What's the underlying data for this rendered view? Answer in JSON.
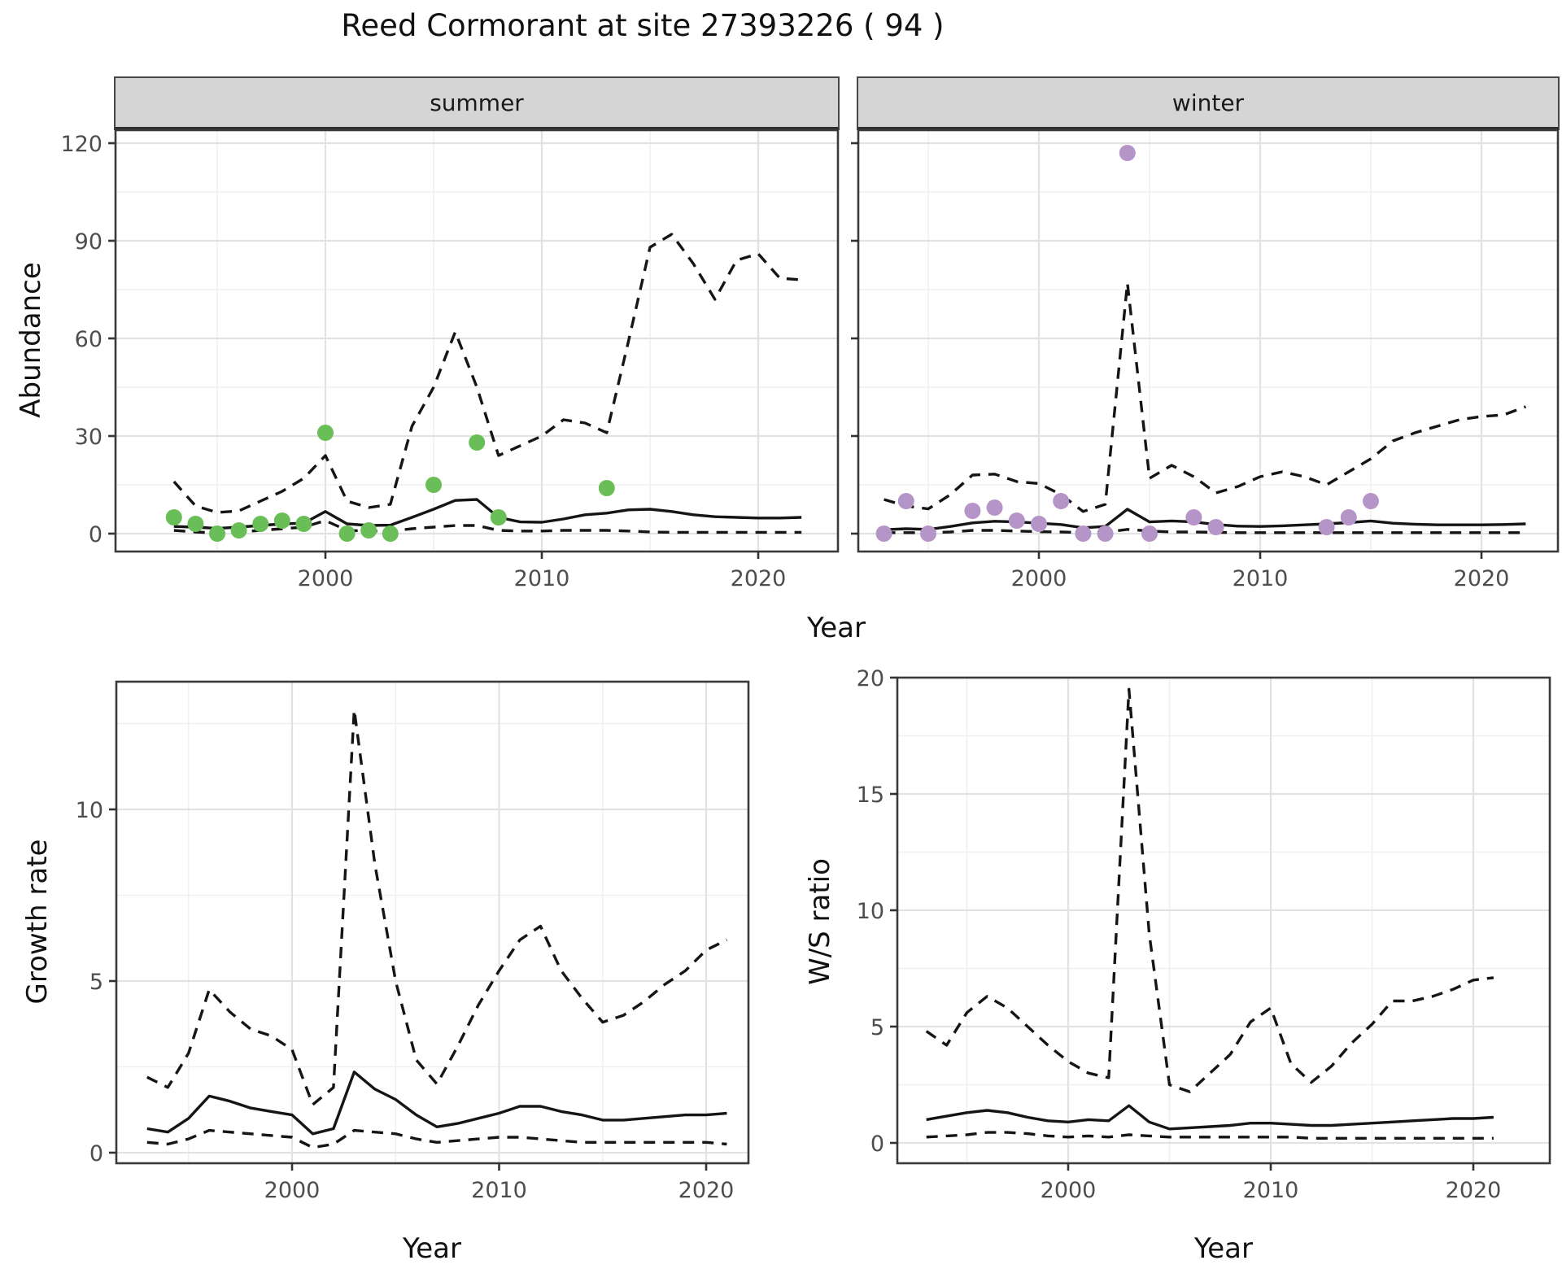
{
  "title": "Reed Cormorant at site 27393226 ( 94 )",
  "top_figure": {
    "ylabel": "Abundance",
    "xlabel": "Year",
    "facets": [
      "summer",
      "winter"
    ]
  },
  "colors": {
    "summer_points": "#69be57",
    "winter_points": "#b594c7",
    "line": "#151515",
    "major_grid": "#e2e2e2",
    "minor_grid": "#f0f0f0",
    "panel_border": "#3a3a3a",
    "strip_bg": "#d5d5d5",
    "tick_text": "#4d4d4d"
  },
  "chart_data": [
    {
      "id": "abundance_summer",
      "type": "line",
      "facet_label": "summer",
      "xlabel": "Year",
      "ylabel": "Abundance",
      "x_ticks": [
        2000,
        2010,
        2020
      ],
      "x_minor": [
        1995,
        2005,
        2015
      ],
      "y_ticks": [
        0,
        30,
        60,
        90,
        120
      ],
      "y_minor": [
        15,
        45,
        75,
        105
      ],
      "xlim": [
        1990.3,
        2023.8
      ],
      "ylim": [
        -5.5,
        124
      ],
      "show_y_labels": true,
      "point_color": "#69be57",
      "points": {
        "x": [
          1993,
          1994,
          1995,
          1996,
          1997,
          1998,
          1999,
          2000,
          2001,
          2002,
          2003,
          2005,
          2007,
          2008,
          2013
        ],
        "y": [
          5,
          3,
          0,
          1,
          3,
          4,
          3,
          31,
          0,
          1,
          0,
          15,
          28,
          5,
          14
        ]
      },
      "series": [
        {
          "name": "median",
          "style": "solid",
          "year_start": 1993,
          "x_step": 1,
          "values": [
            2.2,
            2.0,
            1.6,
            2.0,
            2.5,
            3.0,
            3.2,
            6.8,
            3.0,
            2.5,
            2.6,
            5.0,
            7.5,
            10.2,
            10.5,
            5.0,
            3.6,
            3.5,
            4.5,
            5.8,
            6.3,
            7.3,
            7.5,
            6.8,
            5.8,
            5.2,
            5.0,
            4.8,
            4.8,
            5.0
          ]
        },
        {
          "name": "upper_ci",
          "style": "dashed",
          "year_start": 1993,
          "x_step": 1,
          "values": [
            16,
            8.5,
            6.5,
            7,
            10,
            13,
            17,
            24,
            10,
            8,
            9,
            33,
            45,
            62,
            45,
            24,
            27,
            30,
            35,
            34,
            31,
            59,
            88,
            92,
            83,
            72,
            84,
            86,
            78.5,
            78
          ]
        },
        {
          "name": "lower_ci",
          "style": "dashed",
          "year_start": 1993,
          "x_step": 1,
          "values": [
            1,
            0.5,
            0.2,
            0.5,
            1,
            1.5,
            2,
            4,
            1,
            0.8,
            0.8,
            1.5,
            2,
            2.5,
            2.5,
            1,
            0.8,
            0.8,
            1,
            1,
            1,
            0.8,
            0.5,
            0.4,
            0.4,
            0.4,
            0.4,
            0.4,
            0.4,
            0.4
          ]
        }
      ]
    },
    {
      "id": "abundance_winter",
      "type": "line",
      "facet_label": "winter",
      "xlabel": "Year",
      "ylabel": "Abundance",
      "x_ticks": [
        2000,
        2010,
        2020
      ],
      "x_minor": [
        1995,
        2005,
        2015
      ],
      "y_ticks": [
        0,
        30,
        60,
        90,
        120
      ],
      "y_minor": [
        15,
        45,
        75,
        105
      ],
      "xlim": [
        1990.3,
        2023.8
      ],
      "ylim": [
        -5.5,
        124
      ],
      "show_y_labels": false,
      "point_color": "#b594c7",
      "points": {
        "x": [
          1993,
          1994,
          1995,
          1997,
          1998,
          1999,
          2000,
          2001,
          2002,
          2003,
          2004,
          2005,
          2007,
          2008,
          2013,
          2014,
          2015
        ],
        "y": [
          0,
          10,
          0,
          7,
          8,
          4,
          3,
          10,
          0,
          0,
          117,
          0,
          5,
          2,
          2,
          5,
          10
        ]
      },
      "series": [
        {
          "name": "median",
          "style": "solid",
          "year_start": 1993,
          "x_step": 1,
          "values": [
            1.2,
            1.5,
            1.3,
            2.2,
            3.3,
            3.8,
            3.6,
            3.2,
            2.8,
            1.8,
            2.2,
            7.5,
            3.6,
            3.9,
            3.6,
            2.8,
            2.3,
            2.2,
            2.4,
            2.7,
            3.0,
            3.4,
            3.9,
            3.2,
            2.9,
            2.7,
            2.7,
            2.7,
            2.8,
            3.0
          ]
        },
        {
          "name": "upper_ci",
          "style": "dashed",
          "year_start": 1993,
          "x_step": 1,
          "values": [
            10.5,
            8.5,
            7.6,
            12,
            18,
            18.3,
            16,
            15.4,
            12,
            6.8,
            9,
            77,
            17,
            21,
            17.5,
            12.5,
            14.5,
            17.5,
            19,
            17.5,
            15,
            19,
            23,
            28.5,
            31,
            33,
            35,
            36,
            36.5,
            39
          ]
        },
        {
          "name": "lower_ci",
          "style": "dashed",
          "year_start": 1993,
          "x_step": 1,
          "values": [
            0.3,
            0.3,
            0.3,
            0.5,
            1.0,
            1.0,
            0.8,
            0.6,
            0.5,
            0.3,
            0.4,
            1.3,
            0.8,
            0.5,
            0.5,
            0.4,
            0.3,
            0.3,
            0.3,
            0.3,
            0.3,
            0.3,
            0.3,
            0.3,
            0.3,
            0.3,
            0.3,
            0.3,
            0.3,
            0.3
          ]
        }
      ]
    },
    {
      "id": "growth_rate",
      "type": "line",
      "xlabel": "Year",
      "ylabel": "Growth rate",
      "x_ticks": [
        2000,
        2010,
        2020
      ],
      "x_minor": [
        1995,
        2005,
        2015
      ],
      "y_ticks": [
        0,
        5,
        10
      ],
      "y_minor": [
        2.5,
        7.5,
        12.5
      ],
      "xlim": [
        1991.5,
        2022.0
      ],
      "ylim": [
        -0.3,
        13.7
      ],
      "show_y_labels": true,
      "series": [
        {
          "name": "median",
          "style": "solid",
          "year_start": 1993,
          "x_step": 1,
          "values": [
            0.7,
            0.6,
            1.0,
            1.65,
            1.5,
            1.3,
            1.2,
            1.1,
            0.55,
            0.7,
            2.35,
            1.85,
            1.55,
            1.1,
            0.75,
            0.85,
            1.0,
            1.15,
            1.35,
            1.35,
            1.2,
            1.1,
            0.95,
            0.95,
            1.0,
            1.05,
            1.1,
            1.1,
            1.15
          ]
        },
        {
          "name": "upper_ci",
          "style": "dashed",
          "year_start": 1993,
          "x_step": 1,
          "values": [
            2.2,
            1.9,
            2.9,
            4.75,
            4.1,
            3.6,
            3.4,
            3.0,
            1.4,
            1.9,
            12.9,
            8.4,
            5.0,
            2.7,
            2.0,
            3.1,
            4.3,
            5.3,
            6.2,
            6.6,
            5.3,
            4.5,
            3.8,
            4.0,
            4.4,
            4.9,
            5.3,
            5.9,
            6.2
          ]
        },
        {
          "name": "lower_ci",
          "style": "dashed",
          "year_start": 1993,
          "x_step": 1,
          "values": [
            0.3,
            0.25,
            0.4,
            0.65,
            0.6,
            0.55,
            0.5,
            0.45,
            0.15,
            0.25,
            0.65,
            0.6,
            0.55,
            0.4,
            0.3,
            0.35,
            0.4,
            0.45,
            0.45,
            0.4,
            0.35,
            0.3,
            0.3,
            0.3,
            0.3,
            0.3,
            0.3,
            0.3,
            0.25
          ]
        }
      ]
    },
    {
      "id": "ws_ratio",
      "type": "line",
      "xlabel": "Year",
      "ylabel": "W/S ratio",
      "x_ticks": [
        2000,
        2010,
        2020
      ],
      "x_minor": [
        1995,
        2005,
        2015
      ],
      "y_ticks": [
        0,
        5,
        10,
        15,
        20
      ],
      "y_minor": [
        2.5,
        7.5,
        12.5,
        17.5
      ],
      "xlim": [
        1991.6,
        2023.8
      ],
      "ylim": [
        -0.2,
        20.1
      ],
      "show_y_labels": true,
      "series": [
        {
          "name": "median",
          "style": "solid",
          "year_start": 1993,
          "x_step": 1,
          "values": [
            1.0,
            1.15,
            1.3,
            1.4,
            1.3,
            1.1,
            0.95,
            0.9,
            1.0,
            0.95,
            1.6,
            0.9,
            0.6,
            0.65,
            0.7,
            0.75,
            0.85,
            0.85,
            0.8,
            0.75,
            0.75,
            0.8,
            0.85,
            0.9,
            0.95,
            1.0,
            1.05,
            1.05,
            1.1
          ]
        },
        {
          "name": "upper_ci",
          "style": "dashed",
          "year_start": 1993,
          "x_step": 1,
          "values": [
            4.8,
            4.2,
            5.6,
            6.3,
            5.8,
            5.0,
            4.2,
            3.5,
            3.0,
            2.8,
            19.5,
            9.0,
            2.5,
            2.2,
            3.0,
            3.8,
            5.2,
            5.8,
            3.4,
            2.6,
            3.3,
            4.3,
            5.1,
            6.1,
            6.1,
            6.3,
            6.6,
            7.0,
            7.1
          ]
        },
        {
          "name": "lower_ci",
          "style": "dashed",
          "year_start": 1993,
          "x_step": 1,
          "values": [
            0.25,
            0.3,
            0.35,
            0.45,
            0.45,
            0.4,
            0.3,
            0.25,
            0.3,
            0.25,
            0.35,
            0.3,
            0.25,
            0.25,
            0.25,
            0.25,
            0.25,
            0.25,
            0.25,
            0.2,
            0.2,
            0.2,
            0.2,
            0.2,
            0.2,
            0.2,
            0.2,
            0.2,
            0.2
          ]
        }
      ]
    }
  ]
}
